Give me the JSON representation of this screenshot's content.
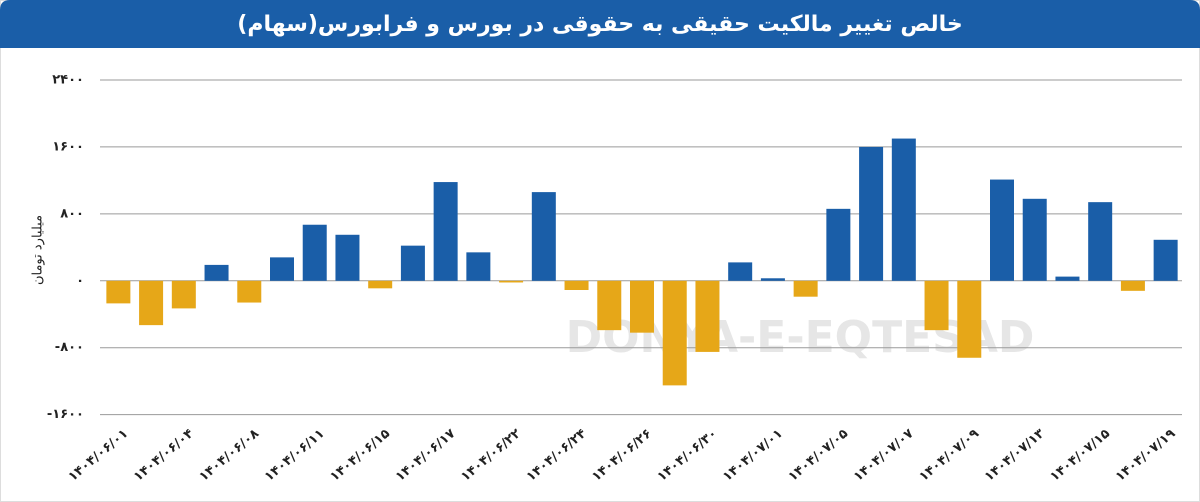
{
  "chart_data": {
    "type": "bar",
    "title": "خالص تغییر مالکیت حقیقی به حقوقی در بورس و فرابورس(سهام)",
    "y_label": "میلیارد تومان",
    "watermark": "DONYA-E-EQTESAD",
    "categories": [
      "۱۴۰۴/۰۶/۰۱",
      null,
      "۱۴۰۴/۰۶/۰۴",
      null,
      "۱۴۰۴/۰۶/۰۸",
      null,
      "۱۴۰۴/۰۶/۱۱",
      null,
      "۱۴۰۴/۰۶/۱۵",
      null,
      "۱۴۰۴/۰۶/۱۷",
      null,
      "۱۴۰۴/۰۶/۲۲",
      null,
      "۱۴۰۴/۰۶/۲۴",
      null,
      "۱۴۰۴/۰۶/۲۶",
      null,
      "۱۴۰۴/۰۶/۳۰",
      null,
      "۱۴۰۴/۰۷/۰۱",
      null,
      "۱۴۰۴/۰۷/۰۵",
      null,
      "۱۴۰۴/۰۷/۰۷",
      null,
      "۱۴۰۴/۰۷/۰۹",
      null,
      "۱۴۰۴/۰۷/۱۳",
      null,
      "۱۴۰۴/۰۷/۱۵",
      null,
      "۱۴۰۴/۰۷/۱۹"
    ],
    "values": [
      -270,
      -530,
      -330,
      190,
      -260,
      280,
      670,
      550,
      -90,
      420,
      1180,
      340,
      -20,
      1060,
      -110,
      -590,
      -620,
      -1250,
      -850,
      220,
      30,
      -190,
      860,
      1600,
      1700,
      -590,
      -920,
      1210,
      980,
      50,
      940,
      -120,
      490
    ],
    "color_positive": "#1a5ea8",
    "color_negative": "#e6a718",
    "ylim": [
      -1640,
      2400
    ],
    "yticks": [
      {
        "value": -1600,
        "label": "-۱۶۰۰"
      },
      {
        "value": -800,
        "label": "-۸۰۰"
      },
      {
        "value": 0,
        "label": "۰"
      },
      {
        "value": 800,
        "label": "۸۰۰"
      },
      {
        "value": 1600,
        "label": "۱۶۰۰"
      },
      {
        "value": 2400,
        "label": "۲۴۰۰"
      }
    ],
    "grid": true
  }
}
